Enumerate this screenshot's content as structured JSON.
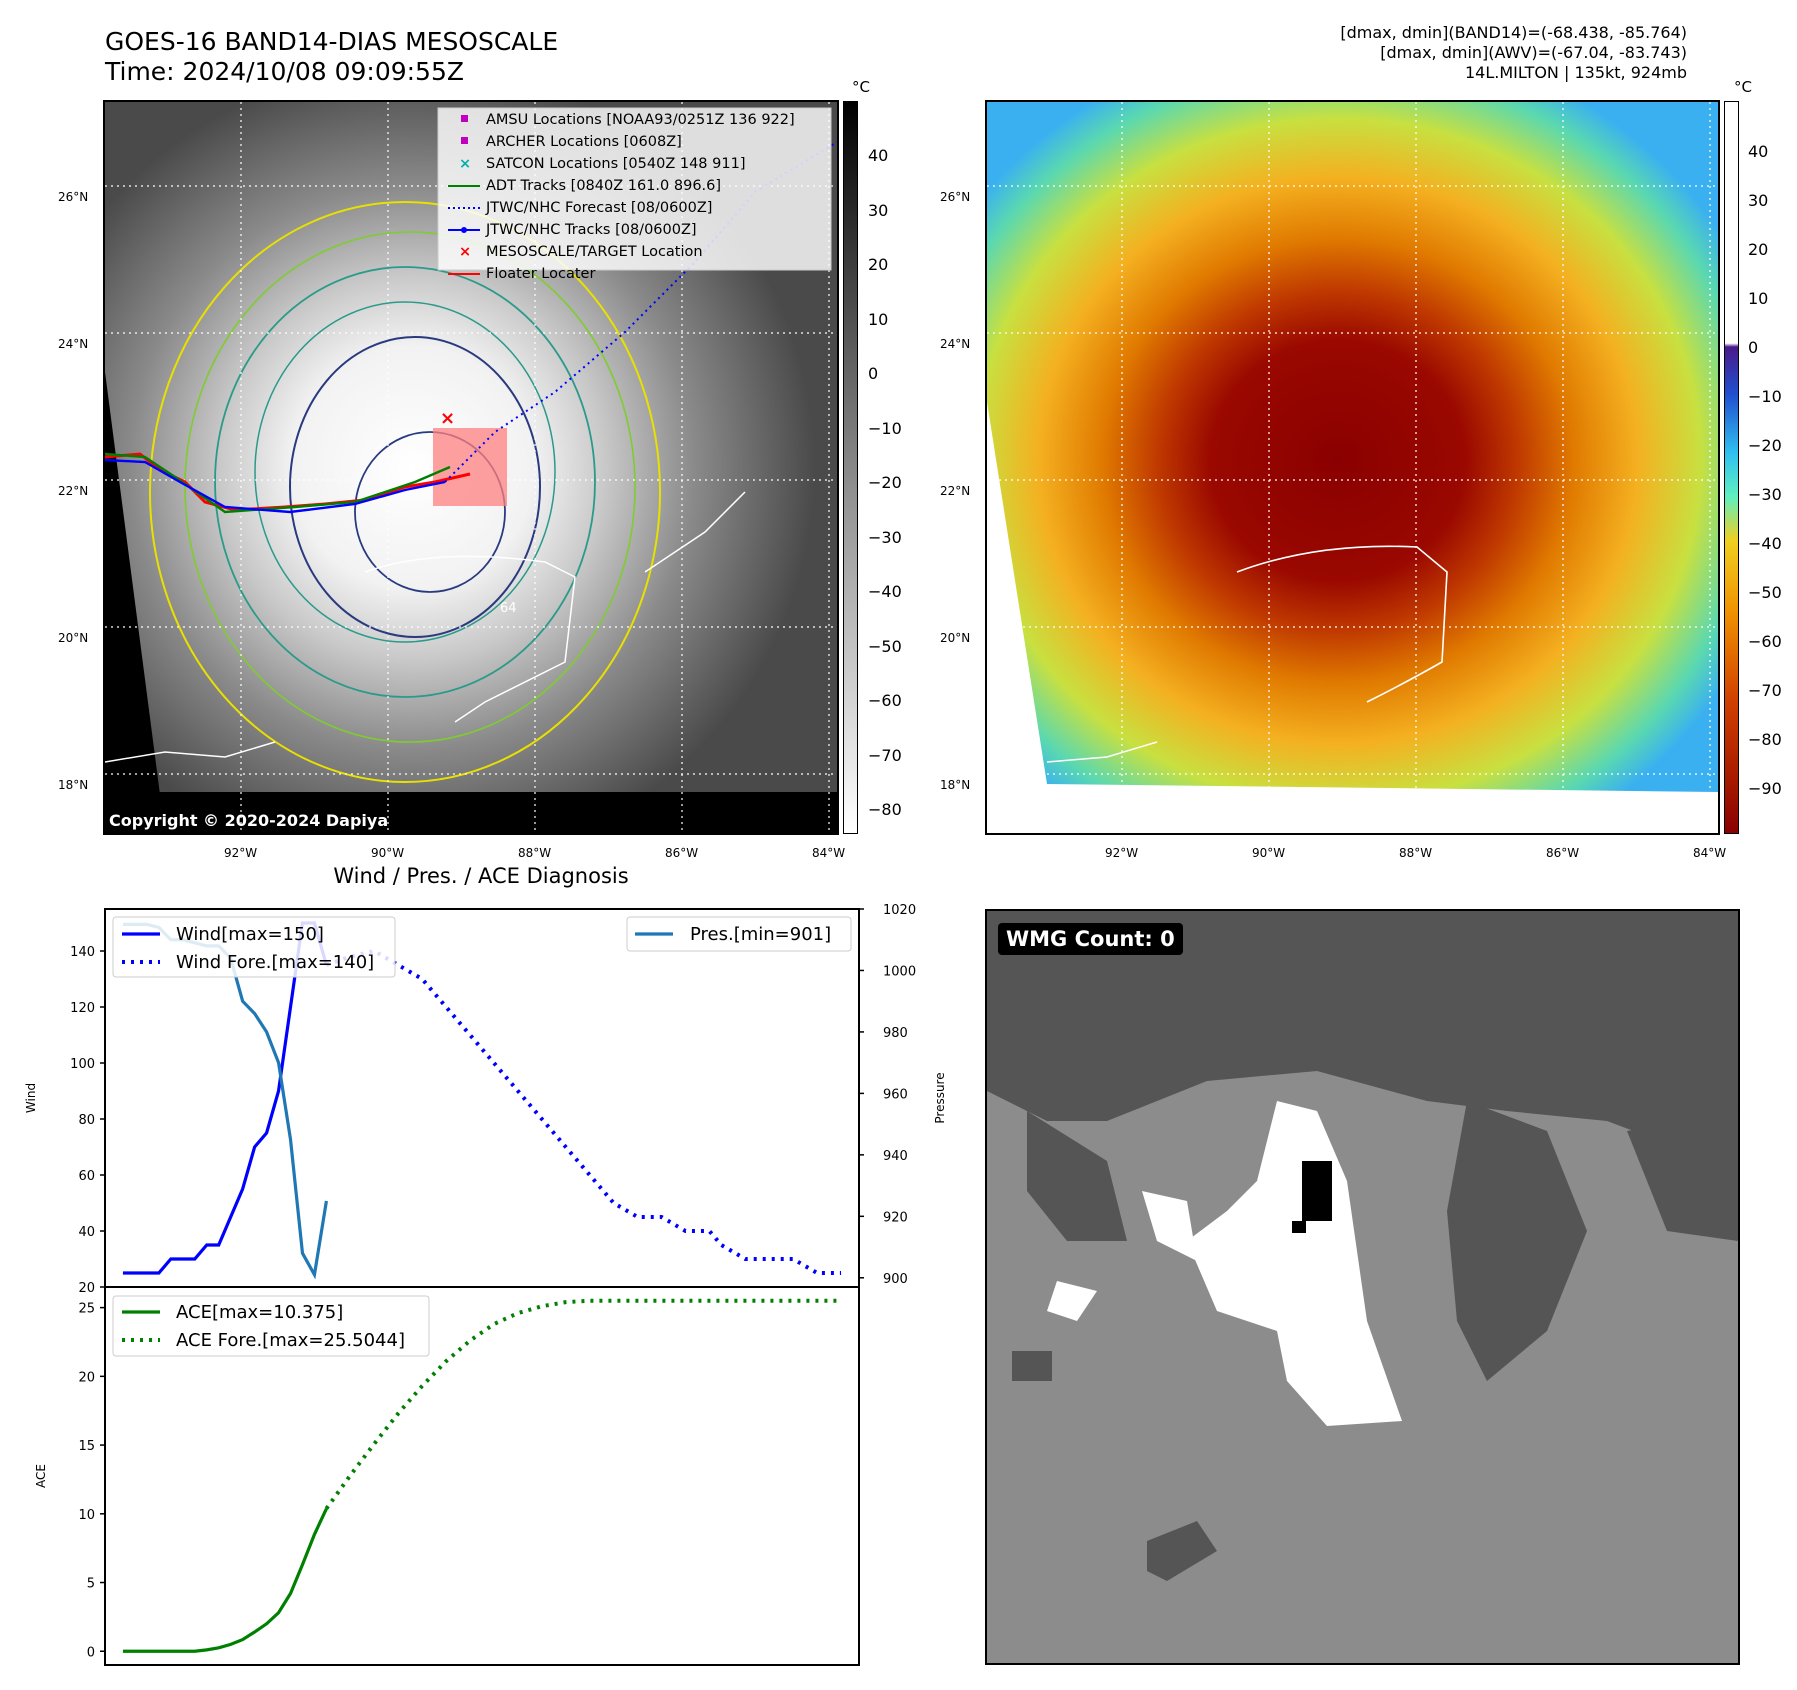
{
  "header": {
    "title_line1": "GOES-16 BAND14-DIAS MESOSCALE",
    "title_line2": "Time: 2024/10/08 09:09:55Z",
    "info_line1": "[dmax, dmin](BAND14)=(-68.438, -85.764)",
    "info_line2": "[dmax, dmin](AWV)=(-67.04, -83.743)",
    "info_line3": "14L.MILTON | 135kt, 924mb"
  },
  "maps": {
    "lat_labels": [
      "26°N",
      "24°N",
      "22°N",
      "20°N",
      "18°N"
    ],
    "lon_labels": [
      "92°W",
      "90°W",
      "88°W",
      "86°W",
      "84°W"
    ],
    "copyright": "Copyright © 2020-2024 Dapiya",
    "contour_label": "64",
    "colorbar_unit": "°C",
    "left_colorbar_ticks": [
      "40",
      "30",
      "20",
      "10",
      "0",
      "−10",
      "−20",
      "−30",
      "−40",
      "−50",
      "−60",
      "−70",
      "−80"
    ],
    "right_colorbar_ticks": [
      "40",
      "30",
      "20",
      "10",
      "0",
      "−10",
      "−20",
      "−30",
      "−40",
      "−50",
      "−60",
      "−70",
      "−80",
      "−90"
    ],
    "legend": [
      {
        "label": "AMSU Locations [NOAA93/0251Z 136 922]",
        "color": "#c000c0",
        "marker": "square"
      },
      {
        "label": "ARCHER Locations [0608Z]",
        "color": "#c000c0",
        "marker": "square"
      },
      {
        "label": "SATCON Locations [0540Z 148 911]",
        "color": "#00b0b0",
        "marker": "x"
      },
      {
        "label": "ADT Tracks [0840Z 161.0 896.6]",
        "color": "#008000",
        "marker": "line"
      },
      {
        "label": "JTWC/NHC Forecast [08/0600Z]",
        "color": "#0000ff",
        "marker": "dotted"
      },
      {
        "label": "JTWC/NHC Tracks [08/0600Z]",
        "color": "#0000ff",
        "marker": "line-dot"
      },
      {
        "label": "MESOSCALE/TARGET Location",
        "color": "#ff0000",
        "marker": "x"
      },
      {
        "label": "Floater Locater",
        "color": "#ff0000",
        "marker": "line"
      }
    ]
  },
  "wmg": {
    "label": "WMG Count: 0"
  },
  "chart_data": [
    {
      "type": "line",
      "title": "Wind / Pres. / ACE Diagnosis",
      "ylabel": "Wind",
      "y2label": "Pressure",
      "ylim": [
        20,
        155
      ],
      "y2lim": [
        897,
        1020
      ],
      "yticks": [
        "20",
        "40",
        "60",
        "80",
        "100",
        "120",
        "140"
      ],
      "y2ticks": [
        "900",
        "920",
        "940",
        "960",
        "980",
        "1000",
        "1020"
      ],
      "legend_left": [
        "Wind[max=150]",
        "Wind Fore.[max=140]"
      ],
      "legend_right": [
        "Pres.[min=901]"
      ],
      "series": [
        {
          "name": "Wind[max=150]",
          "axis": "left",
          "style": "solid",
          "color": "#0000ff",
          "x": [
            0,
            1,
            2,
            3,
            4,
            5,
            6,
            7,
            8,
            9,
            10,
            11,
            12,
            13,
            14,
            15,
            16,
            17
          ],
          "values": [
            25,
            25,
            25,
            25,
            30,
            30,
            30,
            35,
            35,
            45,
            55,
            70,
            75,
            90,
            120,
            150,
            150,
            135
          ]
        },
        {
          "name": "Wind Fore.[max=140]",
          "axis": "left",
          "style": "dotted",
          "color": "#0000ff",
          "x": [
            17,
            19,
            21,
            23,
            25,
            26,
            27,
            29,
            31,
            33,
            35,
            37,
            39,
            41,
            43,
            45,
            47,
            49,
            50,
            52,
            54,
            56,
            58,
            60
          ],
          "values": [
            135,
            138,
            140,
            135,
            130,
            125,
            120,
            110,
            100,
            90,
            80,
            70,
            60,
            50,
            45,
            45,
            40,
            40,
            35,
            30,
            30,
            30,
            25,
            25
          ]
        },
        {
          "name": "Pres.[min=901]",
          "axis": "right",
          "style": "solid",
          "color": "#1f77b4",
          "x": [
            0,
            1,
            2,
            3,
            4,
            5,
            6,
            7,
            8,
            9,
            10,
            11,
            12,
            13,
            14,
            15,
            16,
            17
          ],
          "values": [
            1015,
            1015,
            1015,
            1014,
            1010,
            1010,
            1009,
            1008,
            1008,
            1004,
            990,
            986,
            980,
            970,
            945,
            908,
            901,
            925
          ]
        }
      ]
    },
    {
      "type": "line",
      "ylabel": "ACE",
      "ylim": [
        -1,
        26.5
      ],
      "yticks": [
        "0",
        "5",
        "10",
        "15",
        "20",
        "25"
      ],
      "legend": [
        "ACE[max=10.375]",
        "ACE Fore.[max=25.5044]"
      ],
      "series": [
        {
          "name": "ACE[max=10.375]",
          "style": "solid",
          "color": "#008000",
          "x": [
            0,
            1,
            2,
            3,
            4,
            5,
            6,
            7,
            8,
            9,
            10,
            11,
            12,
            13,
            14,
            15,
            16,
            17
          ],
          "values": [
            0,
            0,
            0,
            0,
            0,
            0,
            0,
            0.1,
            0.25,
            0.5,
            0.85,
            1.4,
            2.0,
            2.8,
            4.2,
            6.3,
            8.5,
            10.375
          ]
        },
        {
          "name": "ACE Fore.[max=25.5044]",
          "style": "dotted",
          "color": "#008000",
          "x": [
            17,
            19,
            21,
            23,
            25,
            27,
            29,
            31,
            33,
            35,
            37,
            39,
            41,
            43,
            45,
            50,
            55,
            60
          ],
          "values": [
            10.375,
            12.8,
            15.1,
            17.3,
            19.3,
            21.1,
            22.6,
            23.8,
            24.6,
            25.1,
            25.4,
            25.5,
            25.5,
            25.5,
            25.5,
            25.5,
            25.5,
            25.5
          ]
        }
      ]
    }
  ]
}
